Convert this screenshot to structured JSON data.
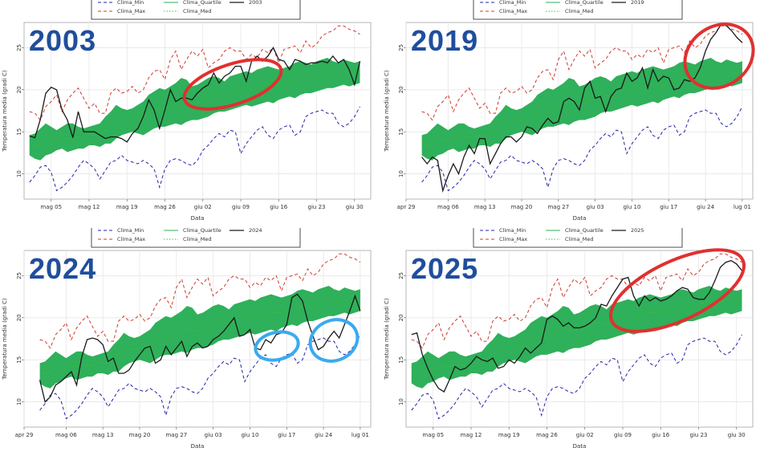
{
  "chart_data": [
    {
      "type": "line",
      "panel_label": "2003",
      "xlabel": "Data",
      "ylabel": "Temperatura media (gradi C)",
      "ylim": [
        7,
        28
      ],
      "xlim_days": [
        0,
        64
      ],
      "yticks": [
        10,
        15,
        20,
        25
      ],
      "xticks": [
        {
          "day": 5,
          "label": "mag 05"
        },
        {
          "day": 12,
          "label": "mag 12"
        },
        {
          "day": 19,
          "label": "mag 19"
        },
        {
          "day": 26,
          "label": "mag 26"
        },
        {
          "day": 33,
          "label": "giu 02"
        },
        {
          "day": 40,
          "label": "giu 09"
        },
        {
          "day": 47,
          "label": "giu 16"
        },
        {
          "day": 54,
          "label": "giu 23"
        },
        {
          "day": 61,
          "label": "giu 30"
        }
      ],
      "legend": [
        "Clima_Min",
        "Clima_Max",
        "Clima_Quartile",
        "Clima_Med",
        "2003"
      ],
      "series": [
        {
          "name": "2003",
          "x": [
            1,
            2,
            3,
            4,
            5,
            6,
            7,
            8,
            9,
            10,
            11,
            12,
            13,
            14,
            15,
            16,
            17,
            18,
            19,
            20,
            21,
            22,
            23,
            24,
            25,
            26,
            27,
            28,
            29,
            30,
            31,
            32,
            33,
            34,
            35,
            36,
            37,
            38,
            39,
            40,
            41,
            42,
            43,
            44,
            45,
            46,
            47,
            48,
            49,
            50,
            51,
            52,
            53,
            54,
            55,
            56,
            57,
            58,
            59,
            60,
            61,
            62
          ],
          "values": [
            14.5,
            14.3,
            16.5,
            19.6,
            20.3,
            20.0,
            17.6,
            16.4,
            14.3,
            17.4,
            15.0,
            15.0,
            15.0,
            14.6,
            14.2,
            14.4,
            14.4,
            14.2,
            13.8,
            14.8,
            15.4,
            16.8,
            18.8,
            17.6,
            15.4,
            17.6,
            20.0,
            18.6,
            19.0,
            19.0,
            18.8,
            19.6,
            20.2,
            20.6,
            22.0,
            20.8,
            21.6,
            22.0,
            22.8,
            22.8,
            21.0,
            23.4,
            24.0,
            23.4,
            24.0,
            25.0,
            23.6,
            23.4,
            22.4,
            23.6,
            23.4,
            23.0,
            23.2,
            23.2,
            23.4,
            23.2,
            24.0,
            23.2,
            23.6,
            22.4,
            20.6,
            23.4
          ]
        }
      ],
      "annotations": [
        {
          "shape": "ellipse",
          "color": "#e03030",
          "note": "highlight"
        }
      ]
    },
    {
      "type": "line",
      "panel_label": "2019",
      "xlabel": "Data",
      "ylabel": "Temperatura media (gradi C)",
      "ylim": [
        7,
        28
      ],
      "xlim_days": [
        -2,
        64
      ],
      "yticks": [
        10,
        15,
        20,
        25
      ],
      "xticks": [
        {
          "day": -2,
          "label": "apr 29"
        },
        {
          "day": 6,
          "label": "mag 06"
        },
        {
          "day": 13,
          "label": "mag 13"
        },
        {
          "day": 20,
          "label": "mag 20"
        },
        {
          "day": 27,
          "label": "mag 27"
        },
        {
          "day": 34,
          "label": "giu 03"
        },
        {
          "day": 41,
          "label": "giu 10"
        },
        {
          "day": 48,
          "label": "giu 17"
        },
        {
          "day": 55,
          "label": "giu 24"
        },
        {
          "day": 62,
          "label": "lug 01"
        }
      ],
      "legend": [
        "Clima_Min",
        "Clima_Max",
        "Clima_Quartile",
        "Clima_Med",
        "2019"
      ],
      "series": [
        {
          "name": "2019",
          "x": [
            1,
            2,
            3,
            4,
            5,
            6,
            7,
            8,
            9,
            10,
            11,
            12,
            13,
            14,
            15,
            16,
            17,
            18,
            19,
            20,
            21,
            22,
            23,
            24,
            25,
            26,
            27,
            28,
            29,
            30,
            31,
            32,
            33,
            34,
            35,
            36,
            37,
            38,
            39,
            40,
            41,
            42,
            43,
            44,
            45,
            46,
            47,
            48,
            49,
            50,
            51,
            52,
            53,
            54,
            55,
            56,
            57,
            58,
            59,
            60,
            61,
            62
          ],
          "values": [
            12.0,
            11.2,
            12.0,
            11.6,
            8.0,
            9.8,
            11.2,
            10.0,
            12.0,
            13.4,
            12.4,
            14.2,
            14.2,
            11.2,
            12.4,
            13.6,
            14.4,
            14.4,
            13.8,
            14.4,
            15.6,
            15.4,
            14.8,
            15.8,
            16.6,
            16.0,
            16.2,
            18.6,
            19.0,
            18.6,
            17.6,
            20.2,
            21.0,
            19.0,
            19.2,
            17.4,
            19.2,
            20.0,
            20.2,
            22.0,
            21.0,
            21.4,
            22.6,
            20.2,
            22.4,
            21.0,
            21.6,
            21.4,
            20.0,
            20.2,
            21.2,
            21.0,
            21.4,
            22.6,
            24.6,
            26.0,
            26.8,
            27.8,
            27.6,
            27.0,
            26.2,
            25.6
          ]
        }
      ],
      "annotations": [
        {
          "shape": "ellipse",
          "color": "#e03030",
          "note": "highlight"
        }
      ]
    },
    {
      "type": "line",
      "panel_label": "2024",
      "xlabel": "Data",
      "ylabel": "Temperatura media (gradi C)",
      "ylim": [
        7,
        28
      ],
      "xlim_days": [
        -2,
        64
      ],
      "yticks": [
        10,
        15,
        20,
        25
      ],
      "xticks": [
        {
          "day": -2,
          "label": "apr 29"
        },
        {
          "day": 6,
          "label": "mag 06"
        },
        {
          "day": 13,
          "label": "mag 13"
        },
        {
          "day": 20,
          "label": "mag 20"
        },
        {
          "day": 27,
          "label": "mag 27"
        },
        {
          "day": 34,
          "label": "giu 03"
        },
        {
          "day": 41,
          "label": "giu 10"
        },
        {
          "day": 48,
          "label": "giu 17"
        },
        {
          "day": 55,
          "label": "giu 24"
        },
        {
          "day": 62,
          "label": "lug 01"
        }
      ],
      "legend": [
        "Clima_Min",
        "Clima_Max",
        "Clima_Quartile",
        "Clima_Med",
        "2024"
      ],
      "series": [
        {
          "name": "2024",
          "x": [
            1,
            2,
            3,
            4,
            5,
            6,
            7,
            8,
            9,
            10,
            11,
            12,
            13,
            14,
            15,
            16,
            17,
            18,
            19,
            20,
            21,
            22,
            23,
            24,
            25,
            26,
            27,
            28,
            29,
            30,
            31,
            32,
            33,
            34,
            35,
            36,
            37,
            38,
            39,
            40,
            41,
            42,
            43,
            44,
            45,
            46,
            47,
            48,
            49,
            50,
            51,
            52,
            53,
            54,
            55,
            56,
            57,
            58,
            59,
            60,
            61,
            62
          ],
          "values": [
            12.6,
            10.0,
            10.6,
            12.0,
            12.4,
            13.0,
            13.6,
            12.0,
            15.4,
            17.4,
            17.6,
            17.4,
            16.8,
            14.8,
            15.2,
            13.4,
            13.4,
            13.8,
            14.8,
            15.6,
            16.4,
            16.6,
            14.6,
            15.0,
            16.6,
            15.6,
            16.4,
            17.2,
            15.4,
            16.6,
            17.0,
            16.4,
            16.6,
            17.4,
            17.8,
            18.4,
            19.2,
            20.0,
            17.8,
            18.0,
            18.6,
            16.4,
            16.2,
            17.4,
            17.0,
            18.0,
            18.2,
            19.2,
            22.4,
            22.8,
            22.0,
            19.6,
            17.8,
            16.2,
            16.6,
            17.6,
            18.4,
            17.6,
            19.2,
            20.8,
            22.6,
            20.8
          ]
        }
      ],
      "annotations": [
        {
          "shape": "ellipse",
          "color": "#3aaaf0",
          "note": "highlight"
        },
        {
          "shape": "ellipse",
          "color": "#3aaaf0",
          "note": "highlight"
        }
      ]
    },
    {
      "type": "line",
      "panel_label": "2025",
      "xlabel": "Data",
      "ylabel": "Temperatura media (gradi C)",
      "ylim": [
        7,
        28
      ],
      "xlim_days": [
        0,
        64
      ],
      "yticks": [
        10,
        15,
        20,
        25
      ],
      "xticks": [
        {
          "day": 5,
          "label": "mag 05"
        },
        {
          "day": 12,
          "label": "mag 12"
        },
        {
          "day": 19,
          "label": "mag 19"
        },
        {
          "day": 26,
          "label": "mag 26"
        },
        {
          "day": 33,
          "label": "giu 02"
        },
        {
          "day": 40,
          "label": "giu 09"
        },
        {
          "day": 47,
          "label": "giu 16"
        },
        {
          "day": 54,
          "label": "giu 23"
        },
        {
          "day": 61,
          "label": "giu 30"
        }
      ],
      "legend": [
        "Clima_Min",
        "Clima_Max",
        "Clima_Quartile",
        "Clima_Med",
        "2025"
      ],
      "series": [
        {
          "name": "2025",
          "x": [
            1,
            2,
            3,
            4,
            5,
            6,
            7,
            8,
            9,
            10,
            11,
            12,
            13,
            14,
            15,
            16,
            17,
            18,
            19,
            20,
            21,
            22,
            23,
            24,
            25,
            26,
            27,
            28,
            29,
            30,
            31,
            32,
            33,
            34,
            35,
            36,
            37,
            38,
            39,
            40,
            41,
            42,
            43,
            44,
            45,
            46,
            47,
            48,
            49,
            50,
            51,
            52,
            53,
            54,
            55,
            56,
            57,
            58,
            59,
            60,
            61,
            62
          ],
          "values": [
            18.0,
            18.2,
            15.6,
            14.0,
            12.6,
            11.6,
            11.2,
            12.6,
            14.2,
            13.8,
            14.0,
            14.6,
            15.4,
            15.0,
            14.8,
            15.2,
            14.0,
            14.2,
            15.0,
            14.6,
            15.4,
            16.4,
            15.8,
            16.4,
            17.0,
            19.8,
            20.2,
            19.8,
            19.0,
            19.4,
            18.8,
            18.8,
            19.0,
            19.4,
            20.0,
            21.6,
            21.4,
            22.6,
            23.6,
            24.6,
            24.8,
            22.6,
            21.4,
            22.6,
            22.0,
            22.4,
            22.0,
            22.2,
            22.6,
            23.2,
            23.6,
            23.4,
            22.4,
            22.2,
            22.2,
            23.0,
            24.4,
            26.0,
            26.6,
            26.8,
            26.4,
            25.6
          ]
        }
      ],
      "annotations": [
        {
          "shape": "ellipse",
          "color": "#e03030",
          "note": "highlight"
        }
      ]
    }
  ],
  "climatology": {
    "x": [
      1,
      2,
      3,
      4,
      5,
      6,
      7,
      8,
      9,
      10,
      11,
      12,
      13,
      14,
      15,
      16,
      17,
      18,
      19,
      20,
      21,
      22,
      23,
      24,
      25,
      26,
      27,
      28,
      29,
      30,
      31,
      32,
      33,
      34,
      35,
      36,
      37,
      38,
      39,
      40,
      41,
      42,
      43,
      44,
      45,
      46,
      47,
      48,
      49,
      50,
      51,
      52,
      53,
      54,
      55,
      56,
      57,
      58,
      59,
      60,
      61,
      62
    ],
    "min": [
      9.0,
      9.8,
      10.8,
      11.0,
      10.2,
      8.0,
      8.4,
      9.0,
      9.8,
      10.8,
      11.6,
      11.2,
      10.6,
      9.4,
      10.4,
      11.4,
      11.6,
      12.2,
      11.6,
      11.4,
      11.2,
      11.6,
      11.2,
      10.6,
      8.4,
      10.6,
      11.6,
      11.8,
      11.6,
      11.2,
      11.0,
      11.6,
      12.8,
      13.4,
      14.2,
      14.8,
      14.4,
      15.2,
      15.0,
      12.4,
      13.6,
      14.4,
      15.2,
      15.6,
      14.6,
      14.2,
      15.2,
      15.6,
      15.8,
      14.6,
      15.0,
      16.8,
      17.2,
      17.4,
      17.6,
      17.2,
      17.2,
      16.0,
      15.6,
      16.0,
      16.8,
      18.0
    ],
    "q1": [
      12.2,
      11.8,
      11.6,
      12.2,
      12.4,
      12.8,
      13.0,
      12.6,
      12.8,
      13.0,
      13.0,
      13.4,
      13.4,
      13.2,
      13.6,
      13.6,
      14.2,
      14.6,
      14.8,
      15.0,
      14.8,
      14.6,
      15.0,
      15.4,
      15.6,
      15.6,
      15.8,
      16.0,
      15.8,
      16.2,
      16.4,
      16.4,
      16.6,
      16.8,
      17.2,
      17.4,
      17.4,
      17.6,
      17.8,
      18.0,
      18.2,
      18.0,
      18.2,
      18.4,
      18.6,
      18.4,
      18.8,
      19.0,
      19.2,
      19.0,
      19.4,
      19.6,
      19.6,
      19.8,
      20.0,
      20.2,
      20.2,
      20.4,
      20.6,
      20.4,
      20.6,
      20.8
    ],
    "q3": [
      14.6,
      14.8,
      15.4,
      16.0,
      15.6,
      15.2,
      15.6,
      16.0,
      16.0,
      15.6,
      15.4,
      15.6,
      15.8,
      16.0,
      16.8,
      17.4,
      18.2,
      17.8,
      17.6,
      17.8,
      18.2,
      18.6,
      19.4,
      19.8,
      20.2,
      20.0,
      20.4,
      20.8,
      21.4,
      21.2,
      20.4,
      20.6,
      21.0,
      21.4,
      21.6,
      21.4,
      21.0,
      21.6,
      21.8,
      22.0,
      22.2,
      22.0,
      22.4,
      22.6,
      22.8,
      22.6,
      22.4,
      22.6,
      22.8,
      23.2,
      23.4,
      23.2,
      23.0,
      23.4,
      23.6,
      23.8,
      23.4,
      23.2,
      23.6,
      23.4,
      23.2,
      23.4
    ],
    "med": [
      13.4,
      13.4,
      13.6,
      14.0,
      14.0,
      14.0,
      14.2,
      14.2,
      14.4,
      14.4,
      14.4,
      14.6,
      14.6,
      14.6,
      15.2,
      15.6,
      16.2,
      16.2,
      16.2,
      16.4,
      16.6,
      16.6,
      17.2,
      17.6,
      17.8,
      17.8,
      18.0,
      18.4,
      18.6,
      18.6,
      18.4,
      18.4,
      18.8,
      19.0,
      19.4,
      19.4,
      19.2,
      19.6,
      19.8,
      20.0,
      20.2,
      20.0,
      20.4,
      20.4,
      20.6,
      20.6,
      20.6,
      20.8,
      21.0,
      21.2,
      21.4,
      21.4,
      21.2,
      21.6,
      21.8,
      22.0,
      21.8,
      21.8,
      22.2,
      22.0,
      22.0,
      22.2
    ],
    "max": [
      17.4,
      17.2,
      16.4,
      18.0,
      18.6,
      19.4,
      17.4,
      18.8,
      19.6,
      20.2,
      19.0,
      17.8,
      18.4,
      17.2,
      17.2,
      19.6,
      20.2,
      19.6,
      19.8,
      20.4,
      19.6,
      20.0,
      21.4,
      22.2,
      22.4,
      21.2,
      23.6,
      24.6,
      22.4,
      23.6,
      24.6,
      24.0,
      24.8,
      22.6,
      23.2,
      23.6,
      24.6,
      25.0,
      24.6,
      24.6,
      23.6,
      24.2,
      23.8,
      24.8,
      24.4,
      25.0,
      23.2,
      24.8,
      25.0,
      25.2,
      24.4,
      25.8,
      25.0,
      25.4,
      26.4,
      26.8,
      27.0,
      27.6,
      27.6,
      27.2,
      27.0,
      26.6
    ]
  },
  "colors": {
    "quartile_fill": "#2fb05a",
    "min_line": "#2424a8",
    "max_line": "#d03a2e",
    "med_line": "#3cc03c",
    "year_line": "#1a1a1a",
    "big_label": "#1f4e9c",
    "grid": "#e6e6e6"
  },
  "legend_labels": [
    "Clima_Min",
    "Clima_Max",
    "Clima_Quartile",
    "Clima_Med"
  ]
}
